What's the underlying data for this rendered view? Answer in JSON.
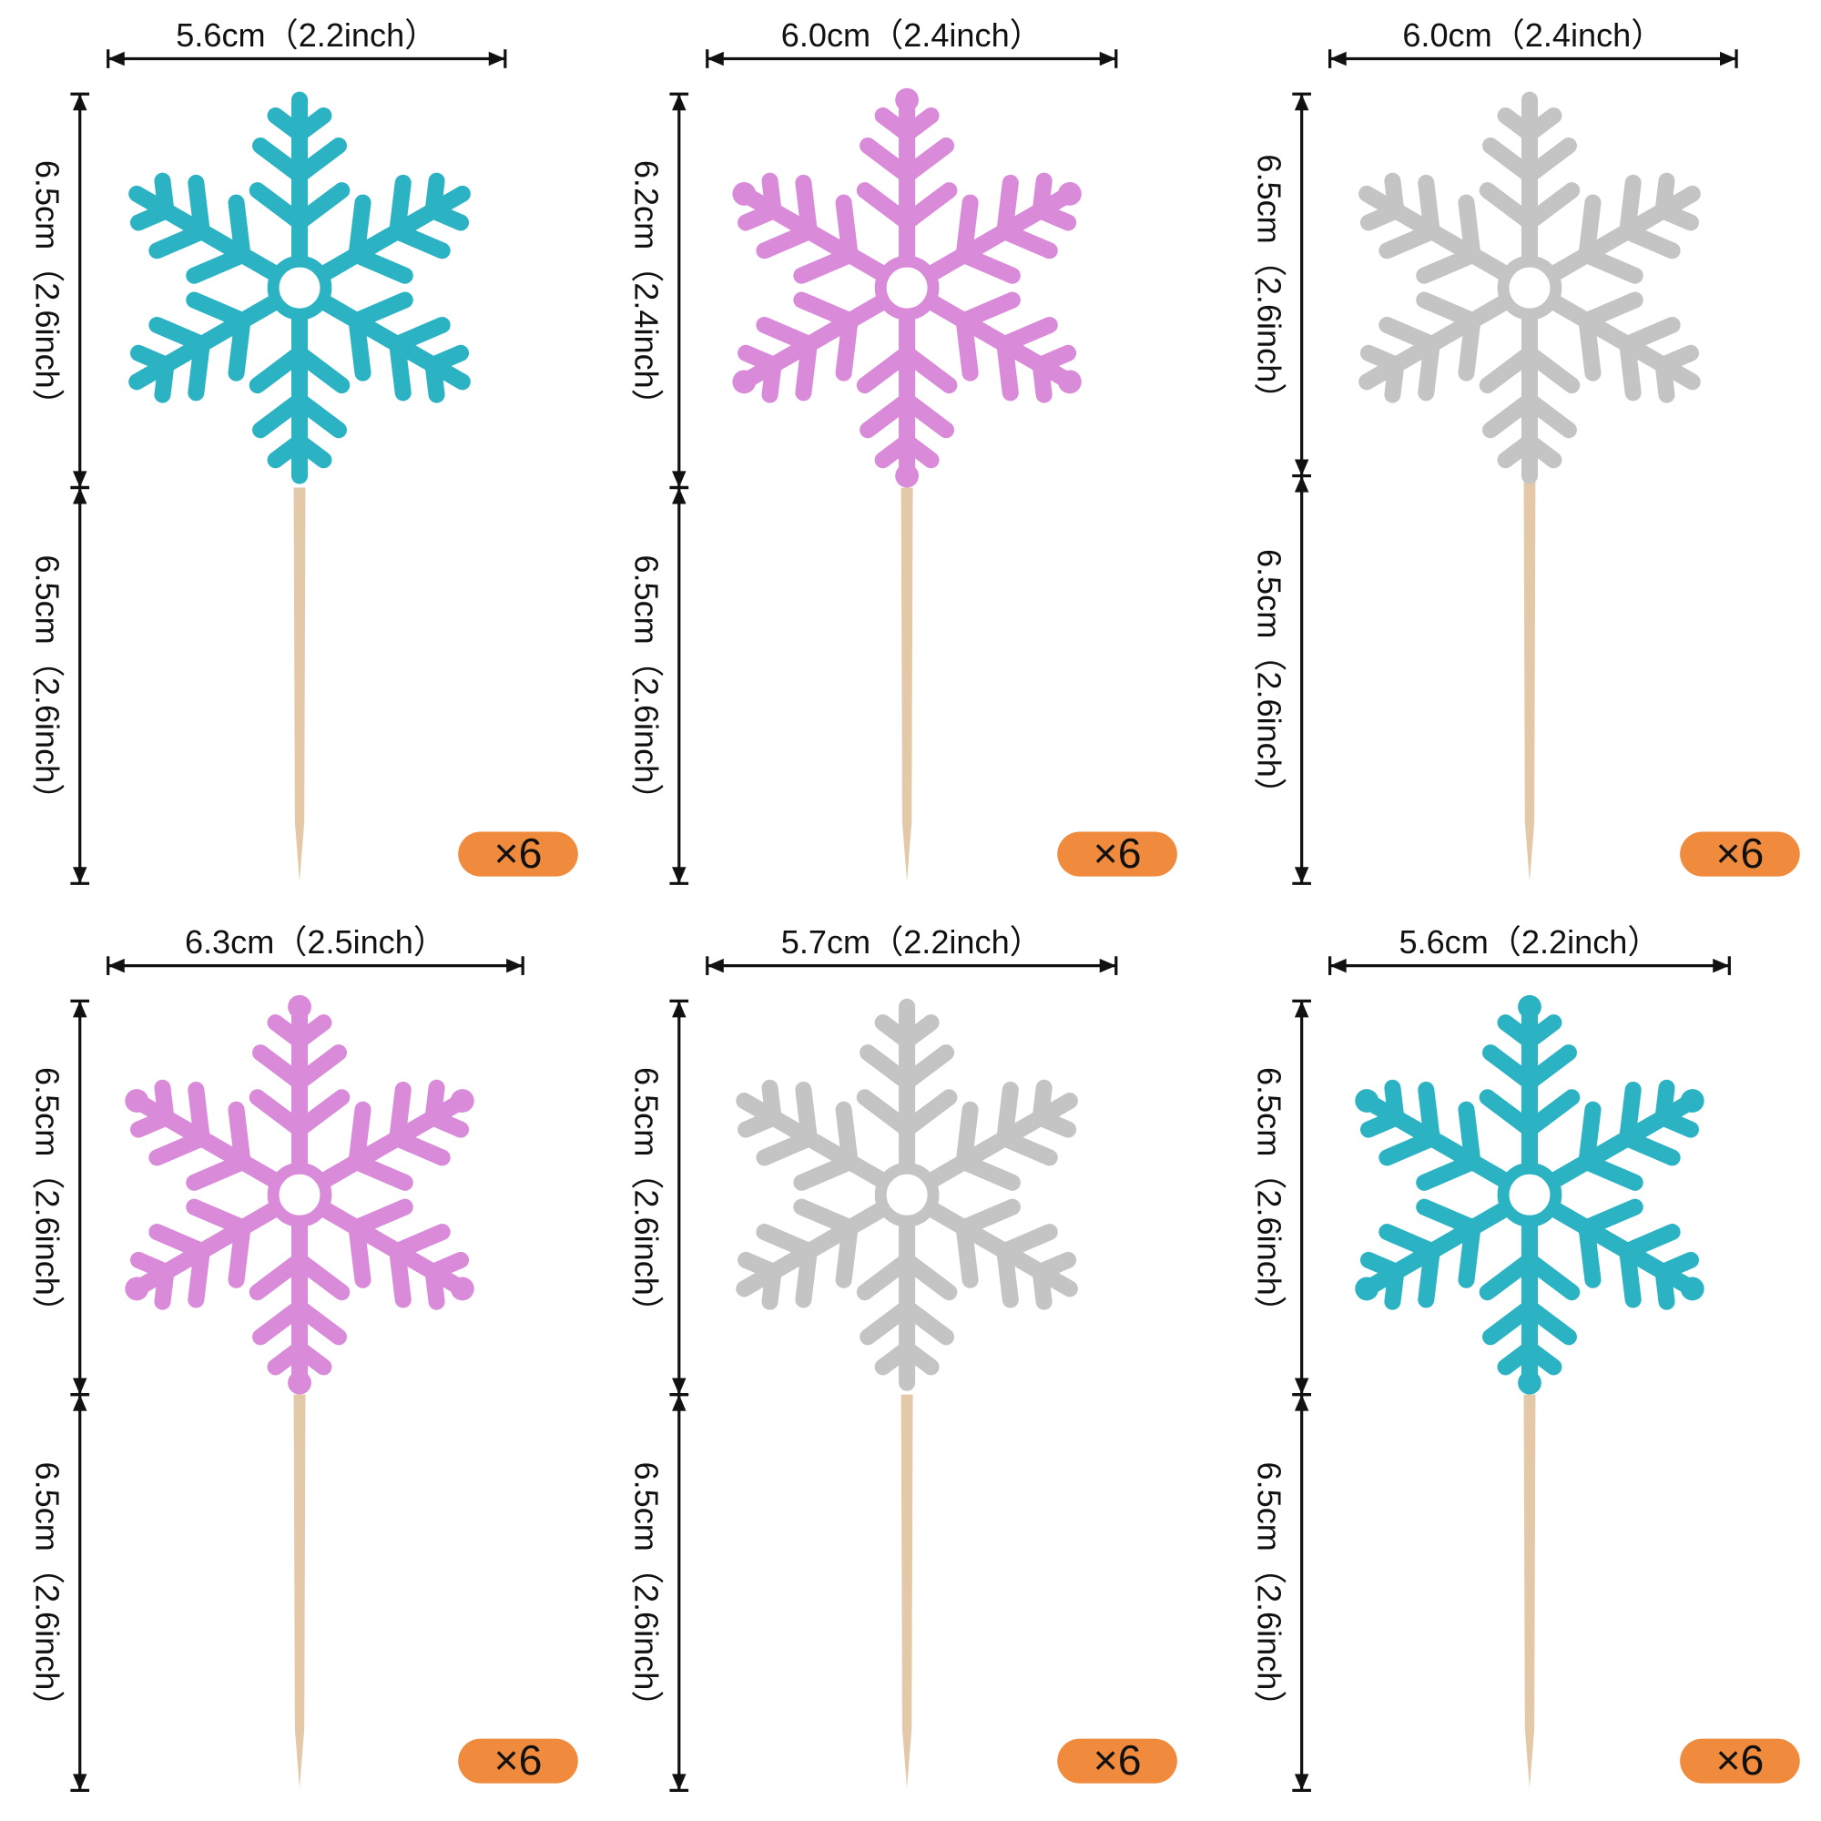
{
  "items": [
    {
      "width": "5.6cm（2.2inch）",
      "top_height": "6.5cm（2.6inch）",
      "stick_height": "6.5cm（2.6inch）",
      "count": "×6"
    },
    {
      "width": "6.0cm（2.4inch）",
      "top_height": "6.2cm（2.4inch）",
      "stick_height": "6.5cm（2.6inch）",
      "count": "×6"
    },
    {
      "width": "6.0cm（2.4inch）",
      "top_height": "6.5cm（2.6inch）",
      "stick_height": "6.5cm（2.6inch）",
      "count": "×6"
    },
    {
      "width": "6.3cm（2.5inch）",
      "top_height": "6.5cm（2.6inch）",
      "stick_height": "6.5cm（2.6inch）",
      "count": "×6"
    },
    {
      "width": "5.7cm（2.2inch）",
      "top_height": "6.5cm（2.6inch）",
      "stick_height": "6.5cm（2.6inch）",
      "count": "×6"
    },
    {
      "width": "5.6cm（2.2inch）",
      "top_height": "6.5cm（2.6inch）",
      "stick_height": "6.5cm（2.6inch）",
      "count": "×6"
    }
  ]
}
